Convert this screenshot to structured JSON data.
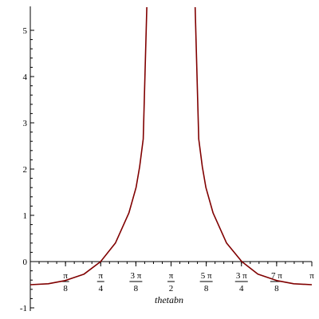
{
  "chart_data": {
    "type": "line",
    "title": "",
    "xlabel": "thetabn",
    "ylabel": "",
    "xlim": [
      0,
      3.14159
    ],
    "ylim": [
      -1,
      5.5
    ],
    "grid": false,
    "line_color": "#800000",
    "y_ticks": [
      -1,
      0,
      1,
      2,
      3,
      4,
      5
    ],
    "y_tick_labels": [
      "-1",
      "0",
      "1",
      "2",
      "3",
      "4",
      "5"
    ],
    "x_ticks": [
      {
        "value": 0.392699,
        "num": "π",
        "den": "8"
      },
      {
        "value": 0.785398,
        "num": "π",
        "den": "4"
      },
      {
        "value": 1.178097,
        "num": "3 π",
        "den": "8"
      },
      {
        "value": 1.570796,
        "num": "π",
        "den": "2"
      },
      {
        "value": 1.963495,
        "num": "5 π",
        "den": "8"
      },
      {
        "value": 2.356194,
        "num": "3 π",
        "den": "4"
      },
      {
        "value": 2.748894,
        "num": "7 π",
        "den": "8"
      },
      {
        "value": 3.141593,
        "num": "π",
        "den": ""
      }
    ],
    "series": [
      {
        "x": [
          0,
          0.2,
          0.39,
          0.6,
          0.785,
          0.95,
          1.1,
          1.18,
          1.22,
          1.26,
          1.3,
          1.84,
          1.88,
          1.92,
          1.96,
          2.04,
          2.19,
          2.36,
          2.54,
          2.75,
          2.94,
          3.14159
        ],
        "y": [
          -0.5,
          -0.48,
          -0.41,
          -0.27,
          0,
          0.4,
          1.05,
          1.6,
          2.05,
          2.65,
          5.5,
          5.5,
          2.65,
          2.05,
          1.6,
          1.05,
          0.4,
          0,
          -0.27,
          -0.41,
          -0.48,
          -0.5
        ]
      }
    ]
  }
}
